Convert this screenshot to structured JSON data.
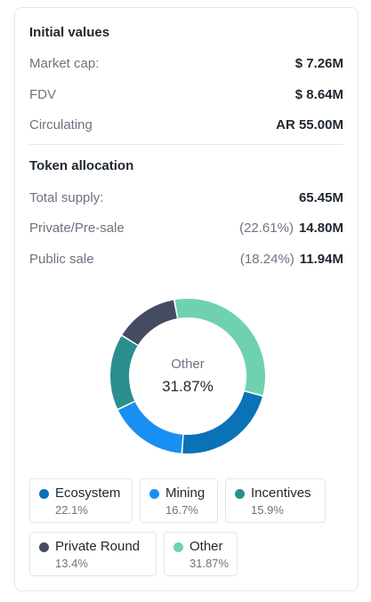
{
  "initial_values": {
    "title": "Initial values",
    "rows": [
      {
        "label": "Market cap:",
        "value": "$ 7.26M"
      },
      {
        "label": "FDV",
        "value": "$ 8.64M"
      },
      {
        "label": "Circulating",
        "value": "AR 55.00M"
      }
    ]
  },
  "token_allocation": {
    "title": "Token allocation",
    "rows": [
      {
        "label": "Total supply:",
        "pct": "",
        "value": "65.45M"
      },
      {
        "label": "Private/Pre-sale",
        "pct": "(22.61%)",
        "value": "14.80M"
      },
      {
        "label": "Public sale",
        "pct": "(18.24%)",
        "value": "11.94M"
      }
    ]
  },
  "donut": {
    "center_label": "Other",
    "center_value": "31.87%"
  },
  "chart_data": {
    "type": "pie",
    "categories": [
      "Ecosystem",
      "Mining",
      "Incentives",
      "Private Round",
      "Other"
    ],
    "values": [
      22.1,
      16.7,
      15.9,
      13.4,
      31.87
    ],
    "colors": [
      "#0a72b6",
      "#1a8ff2",
      "#2a8f8d",
      "#454c62",
      "#6fd1b0"
    ]
  },
  "legend": [
    {
      "name": "Ecosystem",
      "pct": "22.1%",
      "color": "#0a72b6"
    },
    {
      "name": "Mining",
      "pct": "16.7%",
      "color": "#1a8ff2"
    },
    {
      "name": "Incentives",
      "pct": "15.9%",
      "color": "#2a8f8d"
    },
    {
      "name": "Private Round",
      "pct": "13.4%",
      "color": "#454c62"
    },
    {
      "name": "Other",
      "pct": "31.87%",
      "color": "#6fd1b0"
    }
  ]
}
